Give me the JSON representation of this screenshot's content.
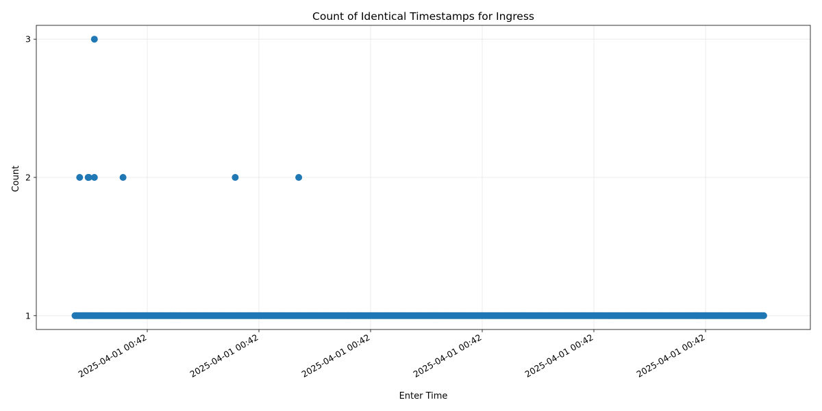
{
  "chart_data": {
    "type": "scatter",
    "title": "Count of Identical Timestamps for Ingress",
    "xlabel": "Enter Time",
    "ylabel": "Count",
    "x_tick_labels": [
      "2025-04-01 00:42",
      "2025-04-01 00:42",
      "2025-04-01 00:42",
      "2025-04-01 00:42",
      "2025-04-01 00:42",
      "2025-04-01 00:42"
    ],
    "y_ticks": [
      1,
      2,
      3
    ],
    "ylim": [
      0.9,
      3.1
    ],
    "grid": true,
    "marker_color": "#1f77b4",
    "series": [
      {
        "baseline_value": 1,
        "baseline_range": [
          0.05,
          0.94
        ],
        "points": [
          {
            "x": 0.056,
            "y": 2
          },
          {
            "x": 0.067,
            "y": 2
          },
          {
            "x": 0.068,
            "y": 2
          },
          {
            "x": 0.075,
            "y": 2
          },
          {
            "x": 0.075,
            "y": 3
          },
          {
            "x": 0.112,
            "y": 2
          },
          {
            "x": 0.257,
            "y": 2
          },
          {
            "x": 0.339,
            "y": 2
          }
        ]
      }
    ]
  }
}
